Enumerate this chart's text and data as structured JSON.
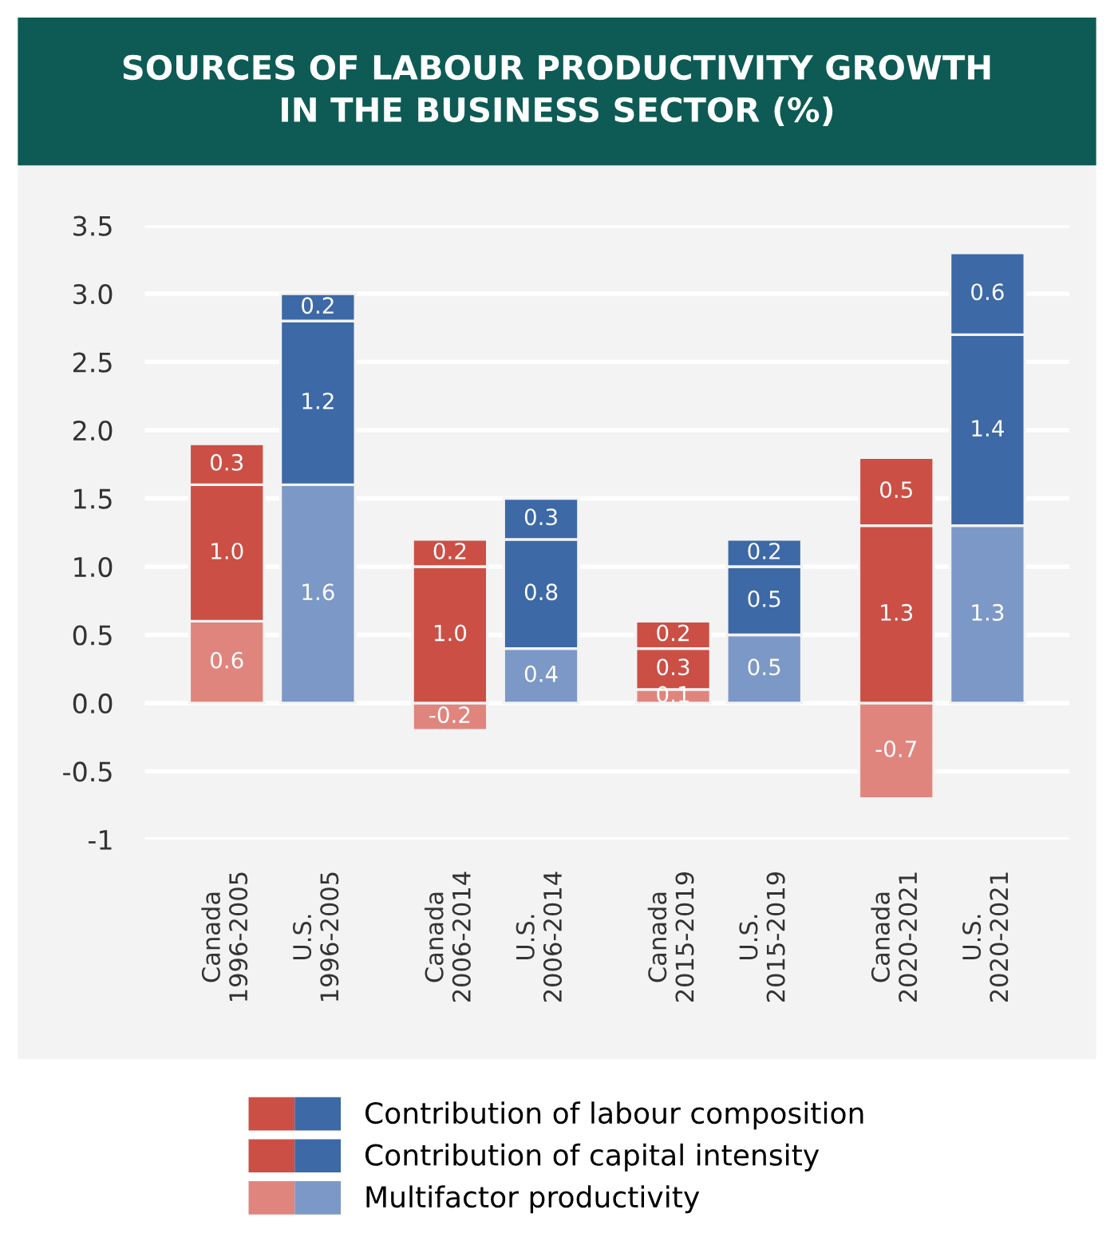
{
  "chart_data": {
    "type": "bar",
    "title": "SOURCES OF LABOUR PRODUCTIVITY GROWTH\nIN THE BUSINESS SECTOR (%)",
    "categories": [
      "Canada\n1996-2005",
      "U.S.\n1996-2005",
      "Canada\n2006-2014",
      "U.S.\n2006-2014",
      "Canada\n2015-2019",
      "U.S.\n2015-2019",
      "Canada\n2020-2021",
      "U.S.\n2020-2021"
    ],
    "stacked": true,
    "series": [
      {
        "name": "Multifactor productivity",
        "colors": [
          "#e0857e",
          "#7c98c6",
          "#e0857e",
          "#7c98c6",
          "#e0857e",
          "#7c98c6",
          "#e0857e",
          "#7c98c6"
        ],
        "values": [
          0.6,
          1.6,
          -0.2,
          0.4,
          0.1,
          0.5,
          -0.7,
          1.3
        ],
        "value_labels": [
          "0.6",
          "1.6",
          "-0.2",
          "0.4",
          "0.1",
          "0.5",
          "-0.7",
          "1.3"
        ]
      },
      {
        "name": "Contribution of capital intensity",
        "colors": [
          "#cb4f45",
          "#3d69a6",
          "#cb4f45",
          "#3d69a6",
          "#cb4f45",
          "#3d69a6",
          "#cb4f45",
          "#3d69a6"
        ],
        "values": [
          1.0,
          1.2,
          1.0,
          0.8,
          0.3,
          0.5,
          1.3,
          1.4
        ],
        "value_labels": [
          "1.0",
          "1.2",
          "1.0",
          "0.8",
          "0.3",
          "0.5",
          "1.3",
          "1.4"
        ]
      },
      {
        "name": "Contribution of labour composition",
        "colors": [
          "#cb4f45",
          "#3d69a6",
          "#cb4f45",
          "#3d69a6",
          "#cb4f45",
          "#3d69a6",
          "#cb4f45",
          "#3d69a6"
        ],
        "values": [
          0.3,
          0.2,
          0.2,
          0.3,
          0.2,
          0.2,
          0.5,
          0.6
        ],
        "value_labels": [
          "0.3",
          "0.2",
          "0.2",
          "0.3",
          "0.2",
          "0.2",
          "0.5",
          "0.6"
        ]
      }
    ],
    "ylim": [
      -1,
      3.5
    ],
    "yticks": [
      {
        "value": -1,
        "label": "-1"
      },
      {
        "value": -0.5,
        "label": "-0.5"
      },
      {
        "value": 0,
        "label": "0.0"
      },
      {
        "value": 0.5,
        "label": "0.5"
      },
      {
        "value": 1,
        "label": "1.0"
      },
      {
        "value": 1.5,
        "label": "1.5"
      },
      {
        "value": 2,
        "label": "2.0"
      },
      {
        "value": 2.5,
        "label": "2.5"
      },
      {
        "value": 3,
        "label": "3.0"
      },
      {
        "value": 3.5,
        "label": "3.5"
      }
    ],
    "grid": "y",
    "legend": "bottom"
  }
}
